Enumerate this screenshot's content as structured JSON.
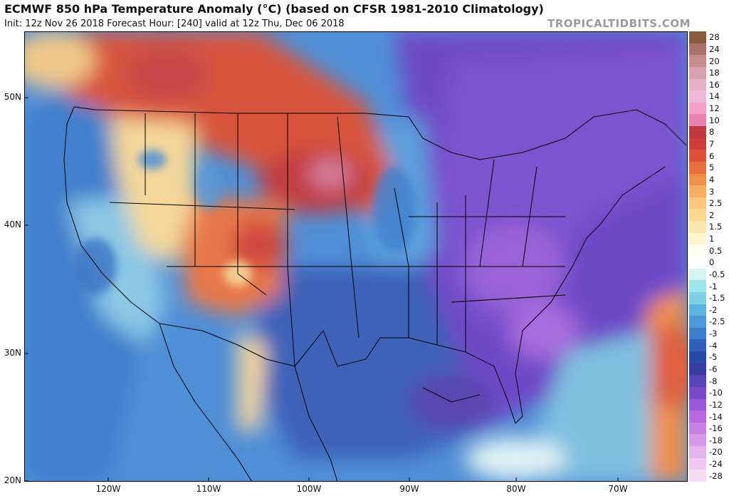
{
  "header": {
    "title": "ECMWF 850 hPa Temperature Anomaly (°C) (based on CFSR 1981-2010 Climatology)",
    "subtitle": "Init: 12z Nov 26 2018   Forecast Hour: [240]   valid at 12z Thu, Dec 06 2018",
    "brand": "TROPICALTIDBITS.COM"
  },
  "axes": {
    "lat_labels": [
      "50N",
      "40N",
      "30N",
      "20N"
    ],
    "lon_labels": [
      "120W",
      "110W",
      "100W",
      "90W",
      "80W",
      "70W"
    ]
  },
  "colorbar": {
    "labels": [
      "28",
      "24",
      "20",
      "18",
      "16",
      "14",
      "12",
      "10",
      "8",
      "7",
      "6",
      "5",
      "4",
      "3",
      "2.5",
      "2",
      "1.5",
      "1",
      "0.5",
      "0",
      "-0.5",
      "-1",
      "-1.5",
      "-2",
      "-2.5",
      "-3",
      "-4",
      "-5",
      "-6",
      "-8",
      "-10",
      "-12",
      "-14",
      "-16",
      "-18",
      "-20",
      "-24",
      "-28"
    ],
    "colors": [
      "#8a5a3e",
      "#a8736a",
      "#c68c8c",
      "#d9a0ae",
      "#e6b0c6",
      "#f0b8da",
      "#f2a0c8",
      "#e880b0",
      "#c03840",
      "#d03a3a",
      "#e05038",
      "#e8703e",
      "#f09048",
      "#f8b060",
      "#fac878",
      "#fbd890",
      "#fce7ab",
      "#fef5cf",
      "#ffffee",
      "#ffffff",
      "#d4f4f4",
      "#9ee6ec",
      "#7ed0e6",
      "#5ab4e0",
      "#4a98d8",
      "#3f7ecb",
      "#3060b8",
      "#274aa8",
      "#3a3aa0",
      "#5a44b8",
      "#7848c8",
      "#9858d8",
      "#b868e0",
      "#c880e4",
      "#d89ae8",
      "#e4b4ec",
      "#eec8f0",
      "#f6dcf2"
    ]
  }
}
